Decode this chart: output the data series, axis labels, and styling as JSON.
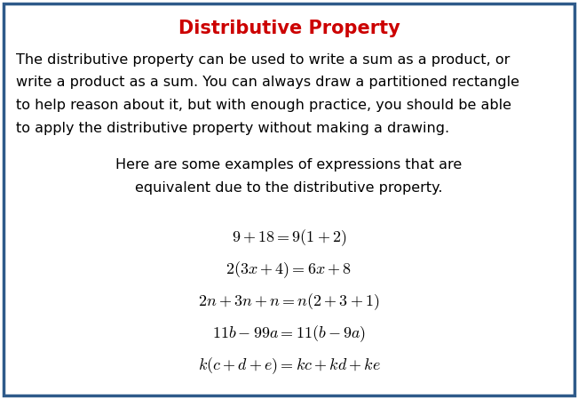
{
  "title": "Distributive Property",
  "title_color": "#CC0000",
  "title_fontsize": 15,
  "body_text_lines": [
    "The distributive property can be used to write a sum as a product, or",
    "write a product as a sum. You can always draw a partitioned rectangle",
    "to help reason about it, but with enough practice, you should be able",
    "to apply the distributive property without making a drawing."
  ],
  "body_fontsize": 11.5,
  "body_color": "#000000",
  "subtext_lines": [
    "Here are some examples of expressions that are",
    "equivalent due to the distributive property."
  ],
  "subtext_fontsize": 11.5,
  "equations_latex": [
    "$9+18=9(1+2)$",
    "$2(3x+4)=6x+8$",
    "$2n+3n+n=n(2+3+1)$",
    "$11b-99a=11(b-9a)$",
    "$k(c+d+e)=kc+kd+ke$"
  ],
  "eq_fontsize": 13,
  "background_color": "#FFFFFF",
  "border_color": "#2E5A8A",
  "border_linewidth": 2.5,
  "fig_width": 6.51,
  "fig_height": 4.49,
  "dpi": 100
}
